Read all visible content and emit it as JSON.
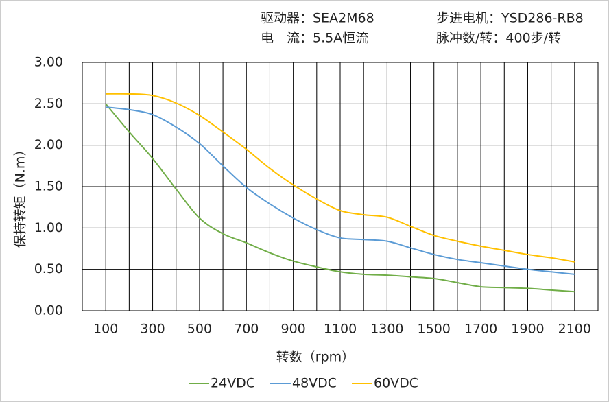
{
  "chart_data": {
    "type": "line",
    "annotations": [
      "驱动器：SEA2M68",
      "步进电机：YSD286-RB8",
      "电　流：5.5A恒流",
      "脉冲数/转：400步/转"
    ],
    "x_label": "转数（rpm）",
    "y_label": "保持转矩（N.m）",
    "x": [
      100,
      200,
      300,
      400,
      500,
      600,
      700,
      800,
      900,
      1000,
      1100,
      1200,
      1300,
      1400,
      1500,
      1600,
      1700,
      1800,
      1900,
      2000,
      2100
    ],
    "series": [
      {
        "name": "24VDC",
        "color": "#70ad47",
        "values": [
          2.5,
          2.16,
          1.84,
          1.47,
          1.12,
          0.93,
          0.82,
          0.7,
          0.6,
          0.53,
          0.47,
          0.44,
          0.43,
          0.41,
          0.39,
          0.34,
          0.29,
          0.28,
          0.27,
          0.25,
          0.23
        ]
      },
      {
        "name": "48VDC",
        "color": "#5b9bd5",
        "values": [
          2.46,
          2.43,
          2.37,
          2.22,
          2.02,
          1.75,
          1.49,
          1.29,
          1.12,
          0.98,
          0.88,
          0.86,
          0.84,
          0.76,
          0.68,
          0.62,
          0.58,
          0.54,
          0.5,
          0.47,
          0.44
        ]
      },
      {
        "name": "60VDC",
        "color": "#ffc000",
        "values": [
          2.62,
          2.62,
          2.6,
          2.51,
          2.36,
          2.16,
          1.95,
          1.72,
          1.52,
          1.35,
          1.21,
          1.16,
          1.13,
          1.02,
          0.91,
          0.84,
          0.78,
          0.73,
          0.68,
          0.64,
          0.59
        ]
      }
    ],
    "xlim": [
      0,
      2200
    ],
    "xticks": [
      100,
      300,
      500,
      700,
      900,
      1100,
      1300,
      1500,
      1700,
      1900,
      2100
    ],
    "xgrid": [
      0,
      200,
      400,
      600,
      800,
      1000,
      1200,
      1400,
      1600,
      1800,
      2000,
      2200
    ],
    "ylim": [
      0,
      3
    ],
    "yticks": [
      {
        "value": 0,
        "label": "0.00"
      },
      {
        "value": 0.5,
        "label": "0.50"
      },
      {
        "value": 1,
        "label": "1.00"
      },
      {
        "value": 1.5,
        "label": "1.50"
      },
      {
        "value": 2,
        "label": "2.00"
      },
      {
        "value": 2.5,
        "label": "2.50"
      },
      {
        "value": 3,
        "label": "3.00"
      }
    ],
    "grid": true
  }
}
